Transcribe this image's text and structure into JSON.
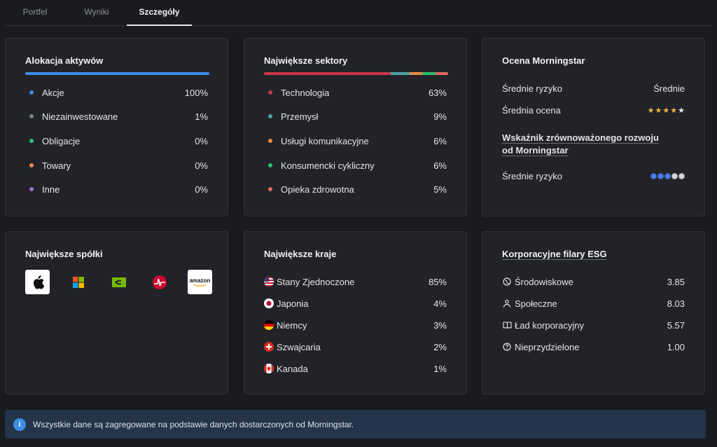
{
  "tabs": [
    {
      "label": "Portfel"
    },
    {
      "label": "Wyniki"
    },
    {
      "label": "Szczegóły"
    }
  ],
  "allocation": {
    "title": "Alokacja aktywów",
    "items": [
      {
        "label": "Akcje",
        "value": "100%",
        "color": "#3d8de8"
      },
      {
        "label": "Niezainwestowane",
        "value": "1%",
        "color": "#7b7e85"
      },
      {
        "label": "Obligacje",
        "value": "0%",
        "color": "#2fbf71"
      },
      {
        "label": "Towary",
        "value": "0%",
        "color": "#ef8a4b"
      },
      {
        "label": "Inne",
        "value": "0%",
        "color": "#a06cd5"
      }
    ]
  },
  "sectors": {
    "title": "Największe sektory",
    "items": [
      {
        "label": "Technologia",
        "value": "63%",
        "color": "#c9384a"
      },
      {
        "label": "Przemysł",
        "value": "9%",
        "color": "#4fa3a8"
      },
      {
        "label": "Usługi komunikacyjne",
        "value": "6%",
        "color": "#ef8a4b"
      },
      {
        "label": "Konsumencki cykliczny",
        "value": "6%",
        "color": "#2fbf71"
      },
      {
        "label": "Opieka zdrowotna",
        "value": "5%",
        "color": "#e06b5e"
      }
    ]
  },
  "morningstar": {
    "title": "Ocena Morningstar",
    "risk_label": "Średnie ryzyko",
    "risk_value": "Średnie",
    "rating_label": "Średnia ocena",
    "rating_stars": 4,
    "rating_max": 5,
    "sustainability_title": "Wskaźnik zrównoważonego rozwoju od Morningstar",
    "sustainability_label": "Średnie ryzyko",
    "globes_filled": 3,
    "globes_max": 5
  },
  "companies": {
    "title": "Największe spółki",
    "logos": [
      {
        "icon": "apple-logo"
      },
      {
        "icon": "microsoft-logo"
      },
      {
        "icon": "nvidia-logo"
      },
      {
        "icon": "broadcom-logo"
      },
      {
        "icon": "amazon-logo",
        "text": "amazon"
      }
    ]
  },
  "countries": {
    "title": "Największe kraje",
    "items": [
      {
        "label": "Stany Zjednoczone",
        "value": "85%",
        "icon": "flag-us"
      },
      {
        "label": "Japonia",
        "value": "4%",
        "icon": "flag-jp"
      },
      {
        "label": "Niemcy",
        "value": "3%",
        "icon": "flag-de"
      },
      {
        "label": "Szwajcaria",
        "value": "2%",
        "icon": "flag-ch"
      },
      {
        "label": "Kanada",
        "value": "1%",
        "icon": "flag-ca"
      }
    ]
  },
  "esg": {
    "title": "Korporacyjne filary ESG",
    "items": [
      {
        "label": "Środowiskowe",
        "value": "3.85",
        "icon": "leaf-globe-icon"
      },
      {
        "label": "Społeczne",
        "value": "8.03",
        "icon": "person-icon"
      },
      {
        "label": "Ład korporacyjny",
        "value": "5.57",
        "icon": "book-icon"
      },
      {
        "label": "Nieprzydzielone",
        "value": "1.00",
        "icon": "question-icon"
      }
    ]
  },
  "banner": {
    "icon": "info-icon",
    "icon_glyph": "i",
    "text": "Wszystkie dane są zagregowane na podstawie danych dostarczonych od Morningstar."
  },
  "colors": {
    "allocation_bar": "#3d8de8",
    "star_filled": "#f0b64a",
    "star_empty": "#e8e8e8",
    "globe_filled": "#4a7be6",
    "globe_empty": "#d6d6d6",
    "banner_bg": "#23344b"
  }
}
